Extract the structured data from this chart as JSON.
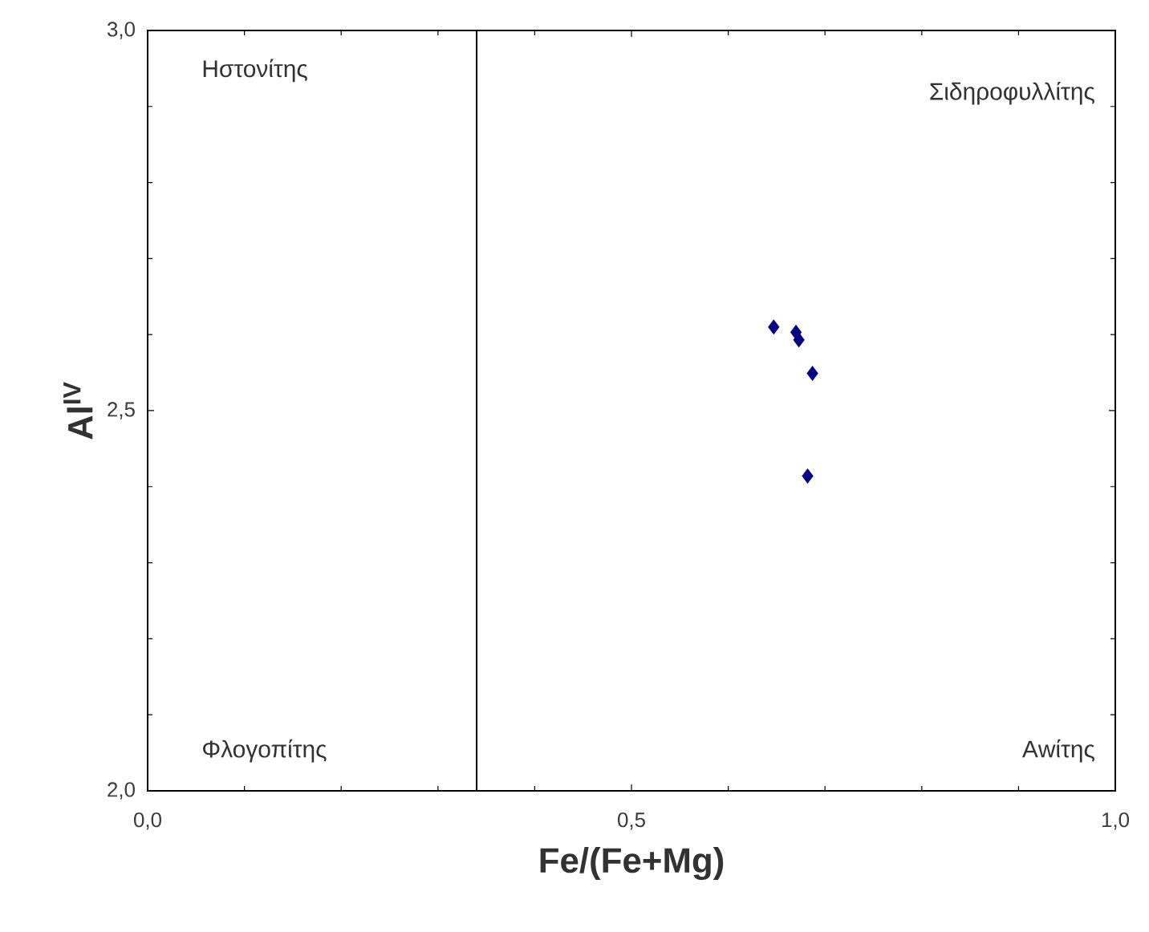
{
  "chart_data": {
    "type": "scatter",
    "xlabel": "Fe/(Fe+Mg)",
    "ylabel": "Al$^{IV}$",
    "x": [
      0.647,
      0.67,
      0.673,
      0.687,
      0.682
    ],
    "series": [
      {
        "color": "#000080",
        "values": [
          2.61,
          2.603,
          2.593,
          2.549,
          2.414
        ]
      }
    ],
    "marker": "diamond",
    "xlim": [
      0,
      1
    ],
    "ylim": [
      2,
      3
    ],
    "xticks": [
      {
        "value": 0,
        "label": "0,0"
      },
      {
        "value": 0.5,
        "label": "0,5"
      },
      {
        "value": 1,
        "label": "1,0"
      }
    ],
    "yticks": [
      {
        "value": 2,
        "label": "2,0"
      },
      {
        "value": 2.5,
        "label": "2,5"
      },
      {
        "value": 3,
        "label": "3,0"
      }
    ],
    "ref_lines": [
      {
        "axis": "x",
        "value": 0.34,
        "color": "#000000"
      }
    ],
    "annotations": [
      "Ηστονίτης",
      "Σιδηροφυλλίτης",
      "Φλογοπίτης",
      "Αwίτης"
    ]
  }
}
